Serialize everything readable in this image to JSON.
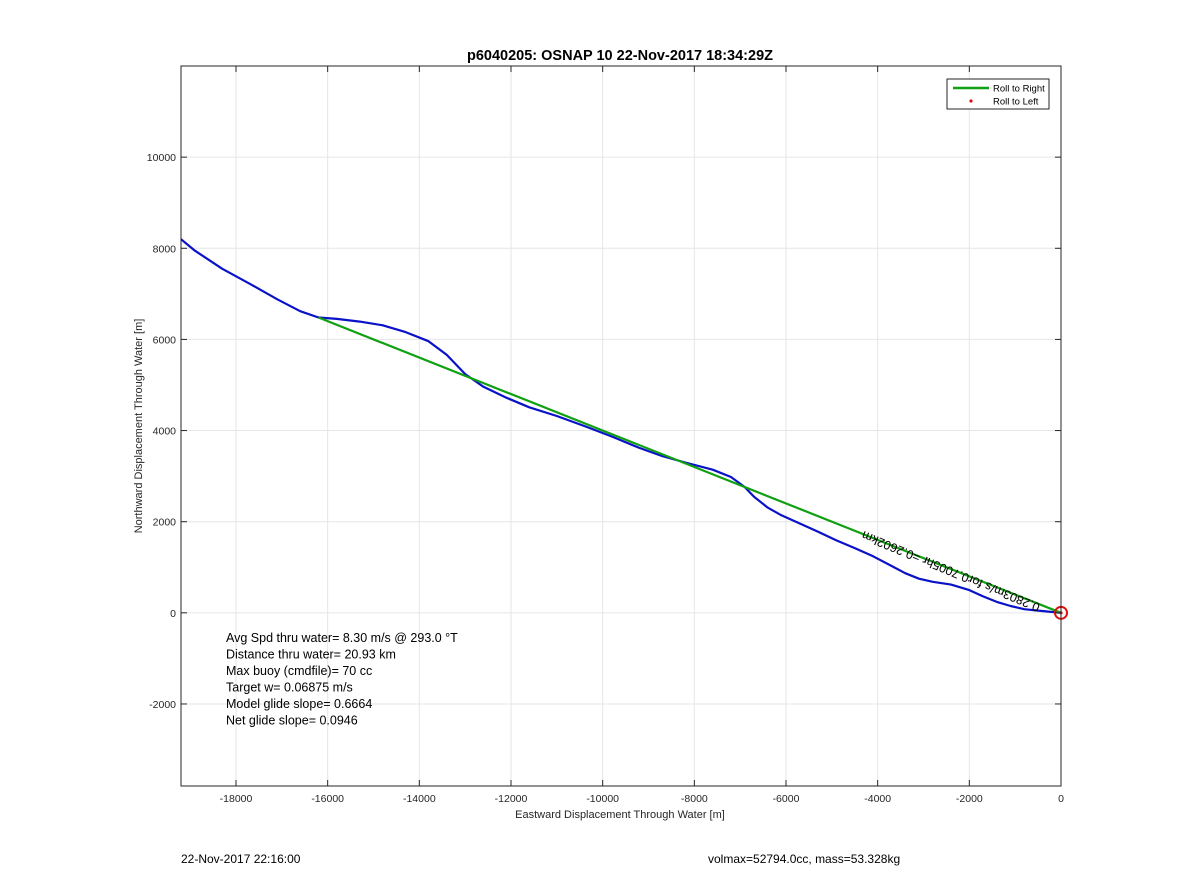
{
  "footer": {
    "left": "22-Nov-2017 22:16:00",
    "right": "volmax=52794.0cc, mass=53.328kg"
  },
  "chart_data": {
    "type": "line",
    "title": "p6040205: OSNAP 10 22-Nov-2017 18:34:29Z",
    "xlabel": "Eastward Displacement Through Water [m]",
    "ylabel": "Northward Displacement Through Water [m]",
    "xlim": [
      -19200,
      0
    ],
    "ylim": [
      -3800,
      12000
    ],
    "xticks": [
      -18000,
      -16000,
      -14000,
      -12000,
      -10000,
      -8000,
      -6000,
      -4000,
      -2000,
      0
    ],
    "yticks": [
      -2000,
      0,
      2000,
      4000,
      6000,
      8000,
      10000
    ],
    "grid": true,
    "legend": {
      "placement": "top-right",
      "entries": [
        {
          "label": "Roll to Right",
          "color": "#11a011",
          "marker": "line"
        },
        {
          "label": "Roll to Left",
          "color": "#e01010",
          "marker": "dot"
        }
      ]
    },
    "series": [
      {
        "color": "#0a12c8",
        "x": [
          -19200,
          -18900,
          -18300,
          -17700,
          -17100,
          -16600,
          -16200,
          -15800,
          -15300,
          -14800,
          -14300,
          -13800,
          -13400,
          -13000,
          -12600,
          -12100,
          -11600,
          -11000,
          -10400,
          -9800,
          -9200,
          -8700,
          -8200,
          -7600,
          -7200,
          -6900,
          -6700,
          -6400,
          -6100,
          -5700,
          -5300,
          -4900,
          -4500,
          -4100,
          -3700,
          -3400,
          -3100,
          -2800,
          -2400,
          -2000,
          -1700,
          -1400,
          -1100,
          -800,
          -500,
          -300,
          -150,
          0
        ],
        "y": [
          8200,
          7950,
          7550,
          7220,
          6880,
          6620,
          6480,
          6450,
          6390,
          6310,
          6160,
          5960,
          5660,
          5240,
          4960,
          4720,
          4510,
          4320,
          4100,
          3870,
          3620,
          3440,
          3300,
          3140,
          2980,
          2760,
          2550,
          2310,
          2140,
          1960,
          1780,
          1590,
          1420,
          1240,
          1030,
          870,
          750,
          680,
          620,
          500,
          360,
          240,
          150,
          80,
          50,
          30,
          15,
          0
        ]
      },
      {
        "color": "#11a011",
        "x": [
          -16200,
          0
        ],
        "y": [
          6480,
          0
        ]
      }
    ],
    "current_position": {
      "x": 0,
      "y": 0,
      "color": "#e01010"
    },
    "segment_label": {
      "text": "0.2803m/s for0.7005hr =0.2602km",
      "x": -4300,
      "y": 1800
    },
    "annotations": [
      "Avg Spd thru water=  8.30 m/s @ 293.0 °T",
      "Distance thru water= 20.93 km",
      "Max buoy (cmdfile)= 70 cc",
      "Target w= 0.06875 m/s",
      "Model glide slope= 0.6664",
      "Net glide slope= 0.0946"
    ]
  }
}
